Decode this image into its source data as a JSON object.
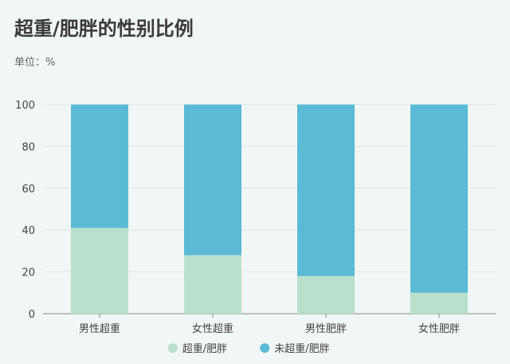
{
  "header": {
    "title": "超重/肥胖的性别比例",
    "unit": "单位：%"
  },
  "colors": {
    "overweight": "#b8e0cc",
    "not_overweight": "#5bbad6",
    "grid": "#dde6e6",
    "axis": "#888888"
  },
  "chart_data": {
    "type": "bar",
    "stacked": true,
    "title": "超重/肥胖的性别比例",
    "ylabel": "",
    "xlabel": "",
    "ylim": [
      0,
      100
    ],
    "yticks": [
      0,
      20,
      40,
      60,
      80,
      100
    ],
    "grid": true,
    "legend": "bottom",
    "categories": [
      "男性超重",
      "女性超重",
      "男性肥胖",
      "女性肥胖"
    ],
    "series": [
      {
        "name": "超重/肥胖",
        "values": [
          41,
          28,
          18,
          10
        ]
      },
      {
        "name": "未超重/肥胖",
        "values": [
          59,
          72,
          82,
          90
        ]
      }
    ]
  }
}
